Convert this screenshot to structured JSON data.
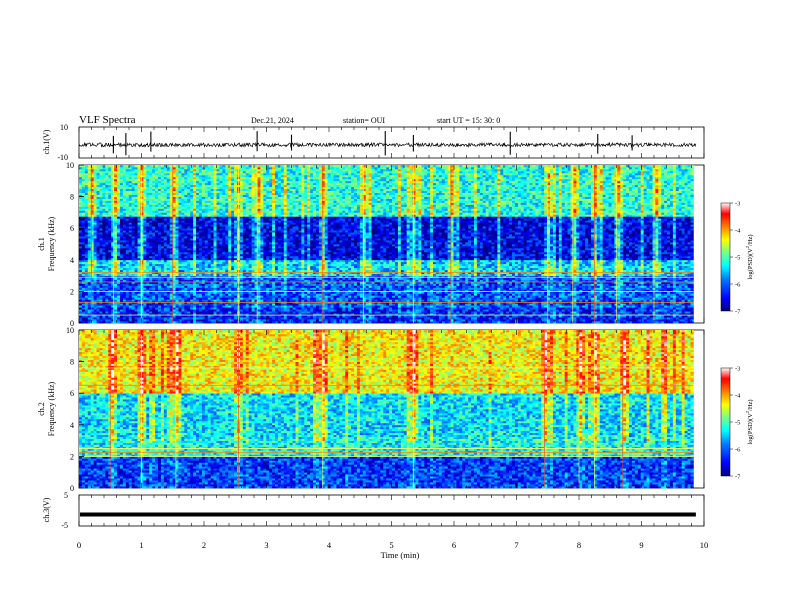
{
  "header": {
    "title": "VLF Spectra",
    "date": "Dec.21, 2024",
    "station": "station= OUI",
    "start": "start  UT =   15: 30: 0"
  },
  "colors": {
    "colormap": [
      "#00007f",
      "#0000ff",
      "#007fff",
      "#00ffff",
      "#7fff7f",
      "#ffff00",
      "#ff7f00",
      "#ff0000",
      "#ffffff"
    ],
    "trace": "#000000"
  },
  "chart_data": [
    {
      "type": "line",
      "name": "ch1-waveform",
      "ylabel": "ch.1(V)",
      "ylim": [
        -10,
        10
      ],
      "yticks": [
        "10",
        "-10"
      ],
      "xlim": [
        0,
        10
      ],
      "baseline": -1.5,
      "noise_amplitude": 1.2,
      "spikes_min": [
        0.55,
        0.75,
        1.15,
        2.85,
        3.4,
        4.9,
        5.35,
        6.9,
        8.3,
        8.85
      ]
    },
    {
      "type": "heatmap",
      "name": "ch1-spectrogram",
      "ylabel": "ch.1\nFrequency (kHz)",
      "ylim": [
        0,
        10
      ],
      "yticks": [
        "0",
        "2",
        "4",
        "6",
        "8",
        "10"
      ],
      "xlim": [
        0,
        9.83
      ],
      "colorbar": {
        "label": "log(PSD)(V²/Hz)",
        "range": [
          -7,
          -3
        ],
        "ticks": [
          "-3",
          "-4",
          "-5",
          "-6",
          "-7"
        ]
      },
      "level_bands_khz": [
        [
          0,
          1.0,
          -6.4
        ],
        [
          1.0,
          3.0,
          -6.2
        ],
        [
          3.0,
          4.0,
          -5.7
        ],
        [
          4.0,
          6.8,
          -6.6
        ],
        [
          6.8,
          10.0,
          -5.4
        ]
      ],
      "steady_lines_khz": [
        0.5,
        1.3,
        2.0,
        2.6,
        2.9,
        3.2
      ],
      "bursts_min": [
        0.2,
        0.55,
        1.0,
        1.5,
        2.55,
        2.85,
        3.9,
        4.55,
        5.35,
        5.95,
        7.5,
        7.9,
        8.25,
        8.6,
        9.2
      ]
    },
    {
      "type": "heatmap",
      "name": "ch2-spectrogram",
      "ylabel": "ch.2\nFrequency (kHz)",
      "ylim": [
        0,
        10
      ],
      "yticks": [
        "0",
        "2",
        "4",
        "6",
        "8",
        "10"
      ],
      "xlim": [
        0,
        9.83
      ],
      "colorbar": {
        "label": "log(PSD)(V²/Hz)",
        "range": [
          -7,
          -3
        ],
        "ticks": [
          "-3",
          "-4",
          "-5",
          "-6",
          "-7"
        ]
      },
      "level_bands_khz": [
        [
          0,
          2.0,
          -6.3
        ],
        [
          2.0,
          3.2,
          -5.5
        ],
        [
          3.2,
          6.0,
          -5.6
        ],
        [
          6.0,
          10.0,
          -4.5
        ]
      ],
      "steady_lines_khz": [
        2.0,
        2.25,
        2.5,
        6.5,
        7.6
      ],
      "bursts_min": [
        0.5,
        1.0,
        1.55,
        2.55,
        3.9,
        5.35,
        7.45,
        8.0,
        8.25,
        8.7
      ]
    },
    {
      "type": "line",
      "name": "ch3-waveform",
      "ylabel": "ch.3(V)",
      "ylim": [
        -5,
        5
      ],
      "yticks": [
        "5",
        "-5"
      ],
      "xlim": [
        0,
        10
      ],
      "value": -1.3
    }
  ],
  "xaxis": {
    "label": "Time  (min)",
    "ticks": [
      "0",
      "1",
      "2",
      "3",
      "4",
      "5",
      "6",
      "7",
      "8",
      "9",
      "10"
    ]
  }
}
